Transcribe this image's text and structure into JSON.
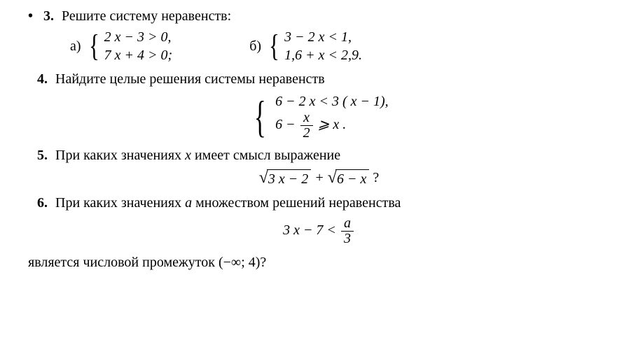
{
  "problems": {
    "p3": {
      "bullet": "•",
      "number": "3.",
      "title": "Решите систему неравенств:",
      "a": {
        "label": "a)",
        "lines": [
          "2 x − 3 > 0,",
          "7 x + 4 > 0;"
        ]
      },
      "b": {
        "label": "б)",
        "lines": [
          "3 − 2 x < 1,",
          "1,6 + x < 2,9."
        ]
      }
    },
    "p4": {
      "number": "4.",
      "title": "Найдите целые решения системы неравенств",
      "system": {
        "line1": "6 − 2 x < 3 ( x − 1),",
        "line2_prefix": "6 − ",
        "line2_frac_num": "x",
        "line2_frac_den": "2",
        "line2_suffix": " ⩾ x .",
        "brace": "{"
      }
    },
    "p5": {
      "number": "5.",
      "title_prefix": "При каких значениях ",
      "title_var": "x",
      "title_suffix": " имеет смысл выражение",
      "expr": {
        "sqrt1": "3 x − 2",
        "plus": " + ",
        "sqrt2": "6 − x",
        "q": " ?"
      }
    },
    "p6": {
      "number": "6.",
      "title_prefix": "При каких значениях ",
      "title_var": "a",
      "title_suffix": " множеством решений неравенства",
      "expr": {
        "lhs": "3 x − 7 < ",
        "frac_num": "a",
        "frac_den": "3"
      },
      "footer_prefix": "является числовой промежуток (−∞; 4)?"
    }
  },
  "style": {
    "text_color": "#000000",
    "background": "#ffffff",
    "font_family": "Times New Roman",
    "base_fontsize_pt": 15,
    "italic_body": true
  }
}
